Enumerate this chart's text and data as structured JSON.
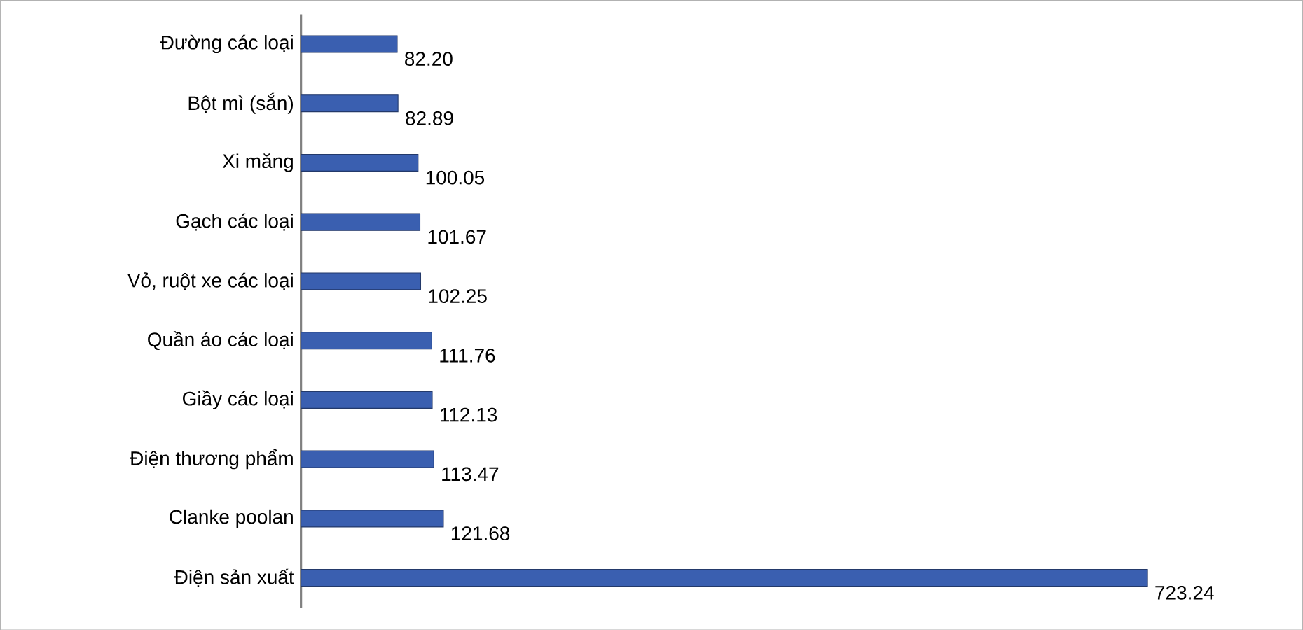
{
  "chart_data": {
    "type": "bar",
    "orientation": "horizontal",
    "categories": [
      "Đường các loại",
      "Bột mì (sắn)",
      "Xi măng",
      "Gạch các loại",
      "Vỏ, ruột xe các loại",
      "Quần áo các loại",
      "Giầy các loại",
      "Điện thương phẩm",
      "Clanke poolan",
      "Điện sản xuất"
    ],
    "values": [
      82.2,
      82.89,
      100.05,
      101.67,
      102.25,
      111.76,
      112.13,
      113.47,
      121.68,
      723.24
    ],
    "value_labels": [
      "82.20",
      "82.89",
      "100.05",
      "101.67",
      "102.25",
      "111.76",
      "112.13",
      "113.47",
      "121.68",
      "723.24"
    ],
    "color": "#3a5fb0"
  }
}
